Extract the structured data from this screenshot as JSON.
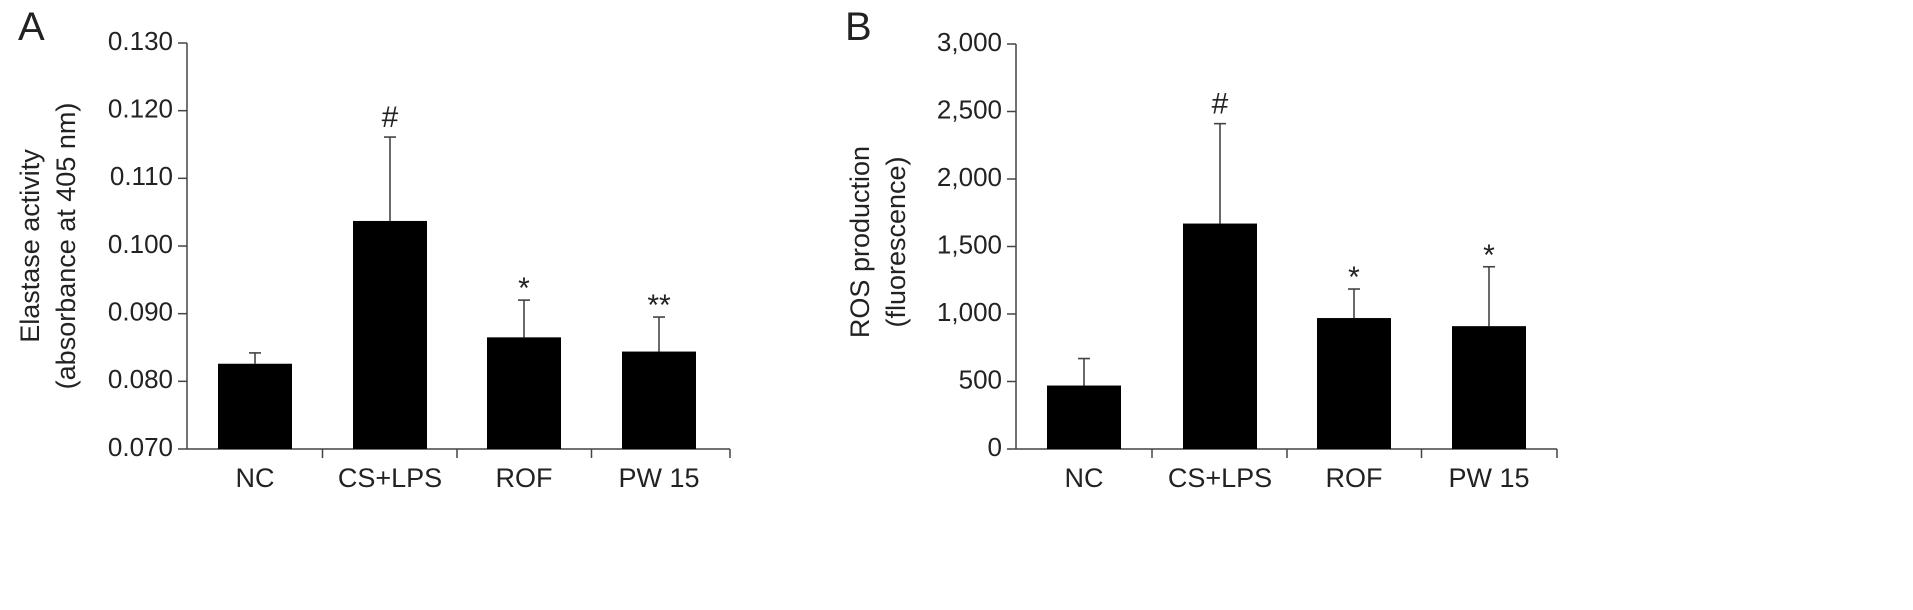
{
  "chart_data": [
    {
      "type": "bar",
      "panel_label": "A",
      "categories": [
        "NC",
        "CS+LPS",
        "ROF",
        "PW 15"
      ],
      "values": [
        0.0826,
        0.1037,
        0.0865,
        0.0844
      ],
      "error": [
        0.0016,
        0.0124,
        0.0055,
        0.0051
      ],
      "significance": [
        "",
        "#",
        "*",
        "**"
      ],
      "ylabel_line1": "Elastase activity",
      "ylabel_line2": "(absorbance at 405 nm)",
      "ylim": [
        0.07,
        0.13
      ],
      "yticks": [
        0.07,
        0.08,
        0.09,
        0.1,
        0.11,
        0.12,
        0.13
      ],
      "ytick_labels": [
        "0.070",
        "0.080",
        "0.090",
        "0.100",
        "0.110",
        "0.120",
        "0.130"
      ],
      "bar_color": "#000000",
      "grid": false
    },
    {
      "type": "bar",
      "panel_label": "B",
      "categories": [
        "NC",
        "CS+LPS",
        "ROF",
        "PW 15"
      ],
      "values": [
        470,
        1670,
        970,
        910
      ],
      "error": [
        200,
        740,
        215,
        440
      ],
      "significance": [
        "",
        "#",
        "*",
        "*"
      ],
      "ylabel_line1": "ROS production",
      "ylabel_line2": "(fluorescence)",
      "ylim": [
        0,
        3000
      ],
      "yticks": [
        0,
        500,
        1000,
        1500,
        2000,
        2500,
        3000
      ],
      "ytick_labels": [
        "0",
        "500",
        "1,000",
        "1,500",
        "2,000",
        "2,500",
        "3,000"
      ],
      "bar_color": "#000000",
      "grid": false
    }
  ]
}
